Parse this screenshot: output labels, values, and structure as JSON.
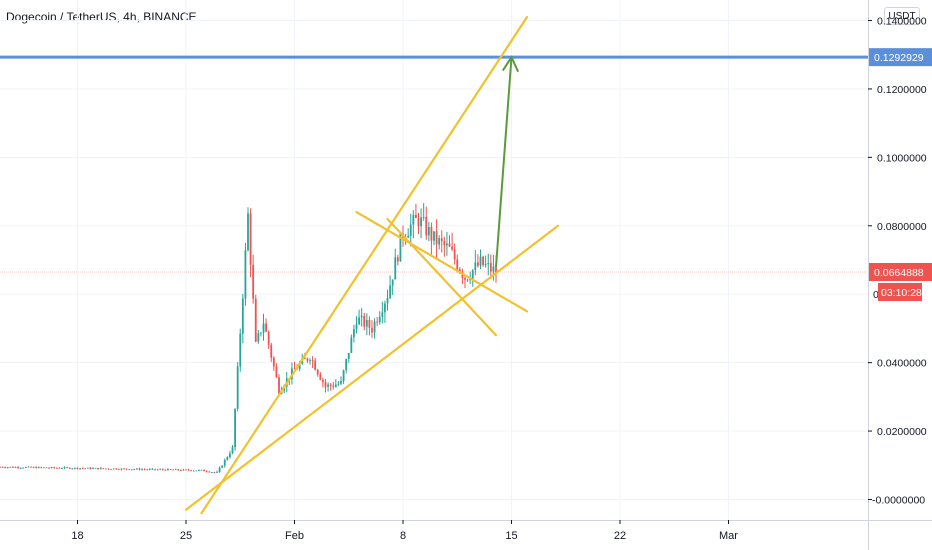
{
  "header": {
    "title": "Dogecoin / TetherUS, 4h, BINANCE",
    "currency": "USDT"
  },
  "colors": {
    "up": "#26a69a",
    "down": "#ef5350",
    "trendline": "#f2c12e",
    "target_line": "#5b8fd9",
    "arrow": "#5a9a3a",
    "last_price_bg": "#ef5350",
    "target_label_bg": "#5b8fd9"
  },
  "chart_data": {
    "type": "candlestick",
    "title": "Dogecoin / TetherUS, 4h, BINANCE",
    "xlabel": "",
    "ylabel": "",
    "x_ticks": [
      "18",
      "25",
      "Feb",
      "8",
      "15",
      "22",
      "Mar"
    ],
    "y_ticks": [
      "0.1400000",
      "0.1200000",
      "0.1000000",
      "0.0800000",
      "0.0400000",
      "0.0200000",
      "-0.0000000"
    ],
    "ylim": [
      -0.006,
      0.146
    ],
    "xlim": [
      "2021-01-13",
      "2021-03-10"
    ],
    "grid": true,
    "series_keyframes": [
      {
        "date": "2021-01-13",
        "price": 0.0095
      },
      {
        "date": "2021-01-20",
        "price": 0.009
      },
      {
        "date": "2021-01-26",
        "price": 0.0085
      },
      {
        "date": "2021-01-27",
        "price": 0.0078
      },
      {
        "date": "2021-01-28",
        "price": 0.015
      },
      {
        "date": "2021-01-29",
        "price": 0.083
      },
      {
        "date": "2021-01-29T12",
        "price": 0.045
      },
      {
        "date": "2021-01-30",
        "price": 0.052
      },
      {
        "date": "2021-01-31",
        "price": 0.032
      },
      {
        "date": "2021-02-01",
        "price": 0.038
      },
      {
        "date": "2021-02-02",
        "price": 0.042
      },
      {
        "date": "2021-02-03",
        "price": 0.033
      },
      {
        "date": "2021-02-04",
        "price": 0.034
      },
      {
        "date": "2021-02-05",
        "price": 0.053
      },
      {
        "date": "2021-02-06",
        "price": 0.05
      },
      {
        "date": "2021-02-07",
        "price": 0.06
      },
      {
        "date": "2021-02-08",
        "price": 0.078
      },
      {
        "date": "2021-02-09",
        "price": 0.082
      },
      {
        "date": "2021-02-10",
        "price": 0.076
      },
      {
        "date": "2021-02-11",
        "price": 0.073
      },
      {
        "date": "2021-02-12",
        "price": 0.065
      },
      {
        "date": "2021-02-13",
        "price": 0.069
      },
      {
        "date": "2021-02-14",
        "price": 0.0665
      }
    ],
    "target_level": 0.1292929,
    "last_price": 0.0664888,
    "countdown": "03:10:28",
    "price_labels": {
      "target": "0.1292929",
      "last": "0.0664888",
      "hidden_tick_edge": "0.",
      "hidden_tick_edge2": "0"
    },
    "trendlines": [
      {
        "from": {
          "date": "2021-01-26",
          "price": -0.004
        },
        "to": {
          "date": "2021-02-16",
          "price": 0.141
        }
      },
      {
        "from": {
          "date": "2021-01-25",
          "price": -0.003
        },
        "to": {
          "date": "2021-02-18",
          "price": 0.08
        }
      },
      {
        "from": {
          "date": "2021-02-05",
          "price": 0.084
        },
        "to": {
          "date": "2021-02-16",
          "price": 0.055
        }
      },
      {
        "from": {
          "date": "2021-02-07",
          "price": 0.082
        },
        "to": {
          "date": "2021-02-14",
          "price": 0.048
        }
      }
    ],
    "arrow": {
      "from": {
        "date": "2021-02-14",
        "price": 0.068
      },
      "to": {
        "date": "2021-02-15",
        "price": 0.1292929
      }
    }
  }
}
